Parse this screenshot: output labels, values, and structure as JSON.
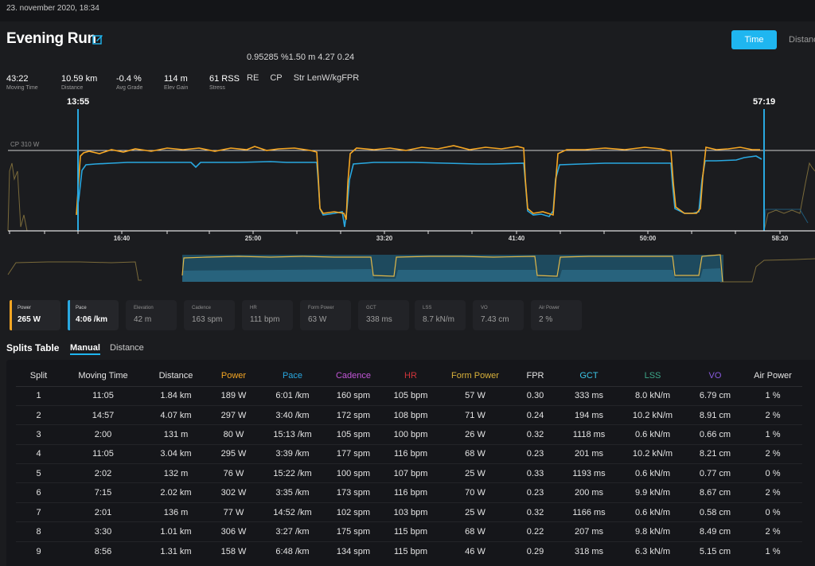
{
  "header": {
    "date": "23. november 2020, 18:34",
    "title": "Evening Run",
    "time_button": "Time",
    "distance_button": "Distance"
  },
  "readout": {
    "values": "0.95285 %1.50 m 4.27  0.24",
    "labels": [
      "RE",
      "CP",
      "Str LenW/kgFPR"
    ]
  },
  "stats": [
    {
      "value": "43:22",
      "label": "Moving Time"
    },
    {
      "value": "10.59 km",
      "label": "Distance"
    },
    {
      "value": "-0.4 %",
      "label": "Avg Grade"
    },
    {
      "value": "114 m",
      "label": "Elev Gain"
    },
    {
      "value": "61 RSS",
      "label": "Stress"
    }
  ],
  "chart": {
    "marker_start": "13:55",
    "marker_end": "57:19",
    "cp_label": "CP 310 W",
    "ticks": [
      "16:40",
      "25:00",
      "33:20",
      "41:40",
      "50:00",
      "58:20"
    ],
    "colors": {
      "power": "#f5a623",
      "pace": "#29a8e0",
      "cp_line": "#cfcfcf"
    }
  },
  "metrics": [
    {
      "label": "Power",
      "value": "265 W",
      "active": true,
      "color": "#f5a623"
    },
    {
      "label": "Pace",
      "value": "4:06 /km",
      "active": true,
      "color": "#29a8e0"
    },
    {
      "label": "Elevation",
      "value": "42 m",
      "active": false
    },
    {
      "label": "Cadence",
      "value": "163 spm",
      "active": false
    },
    {
      "label": "HR",
      "value": "111 bpm",
      "active": false
    },
    {
      "label": "Form Power",
      "value": "63 W",
      "active": false
    },
    {
      "label": "GCT",
      "value": "338 ms",
      "active": false
    },
    {
      "label": "LSS",
      "value": "8.7 kN/m",
      "active": false
    },
    {
      "label": "VO",
      "value": "7.43 cm",
      "active": false
    },
    {
      "label": "Air Power",
      "value": "2 %",
      "active": false
    }
  ],
  "splits": {
    "title": "Splits Table",
    "tabs": [
      "Manual",
      "Distance"
    ],
    "columns": [
      {
        "label": "Split",
        "color": "#e4e4e4"
      },
      {
        "label": "Moving Time",
        "color": "#e4e4e4"
      },
      {
        "label": "Distance",
        "color": "#e4e4e4"
      },
      {
        "label": "Power",
        "color": "#f5a623"
      },
      {
        "label": "Pace",
        "color": "#29a8e0"
      },
      {
        "label": "Cadence",
        "color": "#c156d6"
      },
      {
        "label": "HR",
        "color": "#d0343a"
      },
      {
        "label": "Form Power",
        "color": "#d9b13a"
      },
      {
        "label": "FPR",
        "color": "#e4e4e4"
      },
      {
        "label": "GCT",
        "color": "#3cc4e6"
      },
      {
        "label": "LSS",
        "color": "#3da88a"
      },
      {
        "label": "VO",
        "color": "#8a5be0"
      },
      {
        "label": "Air Power",
        "color": "#e4e4e4"
      }
    ],
    "rows": [
      [
        "1",
        "11:05",
        "1.84 km",
        "189 W",
        "6:01 /km",
        "160 spm",
        "105 bpm",
        "57 W",
        "0.30",
        "333 ms",
        "8.0 kN/m",
        "6.79 cm",
        "1 %"
      ],
      [
        "2",
        "14:57",
        "4.07 km",
        "297 W",
        "3:40 /km",
        "172 spm",
        "108 bpm",
        "71 W",
        "0.24",
        "194 ms",
        "10.2 kN/m",
        "8.91 cm",
        "2 %"
      ],
      [
        "3",
        "2:00",
        "131 m",
        "80 W",
        "15:13 /km",
        "105 spm",
        "100 bpm",
        "26 W",
        "0.32",
        "1118 ms",
        "0.6 kN/m",
        "0.66 cm",
        "1 %"
      ],
      [
        "4",
        "11:05",
        "3.04 km",
        "295 W",
        "3:39 /km",
        "177 spm",
        "116 bpm",
        "68 W",
        "0.23",
        "201 ms",
        "10.2 kN/m",
        "8.21 cm",
        "2 %"
      ],
      [
        "5",
        "2:02",
        "132 m",
        "76 W",
        "15:22 /km",
        "100 spm",
        "107 bpm",
        "25 W",
        "0.33",
        "1193 ms",
        "0.6 kN/m",
        "0.77 cm",
        "0 %"
      ],
      [
        "6",
        "7:15",
        "2.02 km",
        "302 W",
        "3:35 /km",
        "173 spm",
        "116 bpm",
        "70 W",
        "0.23",
        "200 ms",
        "9.9 kN/m",
        "8.67 cm",
        "2 %"
      ],
      [
        "7",
        "2:01",
        "136 m",
        "77 W",
        "14:52 /km",
        "102 spm",
        "103 bpm",
        "25 W",
        "0.32",
        "1166 ms",
        "0.6 kN/m",
        "0.58 cm",
        "0 %"
      ],
      [
        "8",
        "3:30",
        "1.01 km",
        "306 W",
        "3:27 /km",
        "175 spm",
        "115 bpm",
        "68 W",
        "0.22",
        "207 ms",
        "9.8 kN/m",
        "8.49 cm",
        "2 %"
      ],
      [
        "9",
        "8:56",
        "1.31 km",
        "158 W",
        "6:48 /km",
        "134 spm",
        "115 bpm",
        "46 W",
        "0.29",
        "318 ms",
        "6.3 kN/m",
        "5.15 cm",
        "1 %"
      ]
    ]
  }
}
